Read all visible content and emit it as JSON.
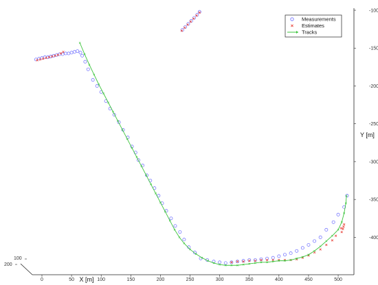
{
  "chart_data": {
    "type": "scatter",
    "xlabel": "X [m]",
    "ylabel": "Y [m]",
    "xlim": [
      -30,
      515
    ],
    "ylim": [
      -100,
      -435
    ],
    "z_ticks": [
      "100",
      "200"
    ],
    "x_ticks": [
      0,
      50,
      100,
      150,
      200,
      250,
      300,
      350,
      400,
      450,
      500
    ],
    "y_ticks": [
      -100,
      -150,
      -200,
      -250,
      -300,
      -350,
      -400
    ],
    "grid": false,
    "legend_position": "top-right",
    "legend": [
      {
        "label": "Measurements",
        "marker": "circle",
        "color": "#6a6aff"
      },
      {
        "label": "Estimates",
        "marker": "x",
        "color": "#e8433a"
      },
      {
        "label": "Tracks",
        "marker": "line-arrow",
        "color": "#3cc43c"
      }
    ],
    "series": [
      {
        "name": "Measurements",
        "kind": "scatter-circle",
        "color": "#6a6aff",
        "points": [
          [
            -10,
            -165
          ],
          [
            -5,
            -164
          ],
          [
            0,
            -163
          ],
          [
            5,
            -162
          ],
          [
            10,
            -162
          ],
          [
            15,
            -161
          ],
          [
            20,
            -160
          ],
          [
            25,
            -159
          ],
          [
            30,
            -158
          ],
          [
            35,
            -158
          ],
          [
            40,
            -157
          ],
          [
            45,
            -157
          ],
          [
            50,
            -156
          ],
          [
            55,
            -155
          ],
          [
            60,
            -154
          ],
          [
            65,
            -156
          ],
          [
            68,
            -160
          ],
          [
            73,
            -168
          ],
          [
            78,
            -178
          ],
          [
            86,
            -192
          ],
          [
            93,
            -200
          ],
          [
            100,
            -208
          ],
          [
            108,
            -220
          ],
          [
            115,
            -230
          ],
          [
            122,
            -238
          ],
          [
            130,
            -248
          ],
          [
            137,
            -258
          ],
          [
            145,
            -268
          ],
          [
            152,
            -280
          ],
          [
            158,
            -288
          ],
          [
            163,
            -298
          ],
          [
            170,
            -305
          ],
          [
            177,
            -318
          ],
          [
            183,
            -325
          ],
          [
            190,
            -335
          ],
          [
            197,
            -345
          ],
          [
            203,
            -355
          ],
          [
            210,
            -365
          ],
          [
            218,
            -375
          ],
          [
            225,
            -385
          ],
          [
            233,
            -393
          ],
          [
            240,
            -403
          ],
          [
            248,
            -413
          ],
          [
            258,
            -420
          ],
          [
            268,
            -428
          ],
          [
            279,
            -430
          ],
          [
            290,
            -432
          ],
          [
            300,
            -433
          ],
          [
            310,
            -434
          ],
          [
            320,
            -433
          ],
          [
            330,
            -432
          ],
          [
            340,
            -431
          ],
          [
            350,
            -430
          ],
          [
            360,
            -430
          ],
          [
            370,
            -429
          ],
          [
            380,
            -428
          ],
          [
            390,
            -427
          ],
          [
            400,
            -425
          ],
          [
            410,
            -423
          ],
          [
            420,
            -421
          ],
          [
            430,
            -418
          ],
          [
            440,
            -414
          ],
          [
            450,
            -410
          ],
          [
            460,
            -405
          ],
          [
            470,
            -400
          ],
          [
            480,
            -390
          ],
          [
            492,
            -380
          ],
          [
            500,
            -370
          ],
          [
            510,
            -360
          ],
          [
            515,
            -345
          ],
          [
            237,
            -126
          ],
          [
            242,
            -122
          ],
          [
            247,
            -118
          ],
          [
            252,
            -114
          ],
          [
            257,
            -110
          ],
          [
            262,
            -106
          ],
          [
            266,
            -102
          ]
        ]
      },
      {
        "name": "Estimates",
        "kind": "scatter-x",
        "color": "#e8433a",
        "points": [
          [
            -8,
            -166
          ],
          [
            -3,
            -165
          ],
          [
            2,
            -164
          ],
          [
            7,
            -163
          ],
          [
            12,
            -162
          ],
          [
            17,
            -161
          ],
          [
            22,
            -160
          ],
          [
            27,
            -159
          ],
          [
            32,
            -157
          ],
          [
            36,
            -155
          ],
          [
            236,
            -127
          ],
          [
            241,
            -123
          ],
          [
            246,
            -119
          ],
          [
            251,
            -115
          ],
          [
            256,
            -111
          ],
          [
            261,
            -107
          ],
          [
            266,
            -103
          ],
          [
            320,
            -433
          ],
          [
            330,
            -432
          ],
          [
            340,
            -432
          ],
          [
            350,
            -431
          ],
          [
            360,
            -431
          ],
          [
            370,
            -430
          ],
          [
            380,
            -430
          ],
          [
            390,
            -430
          ],
          [
            400,
            -430
          ],
          [
            410,
            -430
          ],
          [
            420,
            -430
          ],
          [
            430,
            -429
          ],
          [
            440,
            -427
          ],
          [
            450,
            -424
          ],
          [
            460,
            -420
          ],
          [
            470,
            -416
          ],
          [
            480,
            -410
          ],
          [
            490,
            -404
          ],
          [
            496,
            -398
          ],
          [
            506,
            -393
          ],
          [
            508,
            -389
          ],
          [
            509,
            -386
          ],
          [
            510,
            -383
          ],
          [
            505,
            -388
          ]
        ]
      },
      {
        "name": "Tracks",
        "kind": "line-x",
        "color": "#3cc43c",
        "points": [
          [
            64,
            -143
          ],
          [
            72,
            -158
          ],
          [
            80,
            -172
          ],
          [
            88,
            -185
          ],
          [
            96,
            -198
          ],
          [
            104,
            -210
          ],
          [
            112,
            -222
          ],
          [
            120,
            -234
          ],
          [
            128,
            -246
          ],
          [
            136,
            -258
          ],
          [
            144,
            -270
          ],
          [
            152,
            -282
          ],
          [
            160,
            -294
          ],
          [
            168,
            -306
          ],
          [
            176,
            -318
          ],
          [
            184,
            -330
          ],
          [
            192,
            -342
          ],
          [
            200,
            -354
          ],
          [
            208,
            -366
          ],
          [
            216,
            -378
          ],
          [
            224,
            -390
          ],
          [
            232,
            -400
          ],
          [
            240,
            -408
          ],
          [
            250,
            -416
          ],
          [
            260,
            -422
          ],
          [
            270,
            -427
          ],
          [
            280,
            -431
          ],
          [
            290,
            -434
          ],
          [
            300,
            -436
          ],
          [
            310,
            -437
          ],
          [
            320,
            -437
          ],
          [
            330,
            -437
          ],
          [
            340,
            -436
          ],
          [
            350,
            -435
          ],
          [
            360,
            -434
          ],
          [
            370,
            -433
          ],
          [
            380,
            -433
          ],
          [
            390,
            -432
          ],
          [
            400,
            -431
          ],
          [
            410,
            -431
          ],
          [
            420,
            -430
          ],
          [
            430,
            -428
          ],
          [
            440,
            -426
          ],
          [
            450,
            -423
          ],
          [
            460,
            -418
          ],
          [
            470,
            -412
          ],
          [
            480,
            -405
          ],
          [
            490,
            -398
          ],
          [
            500,
            -390
          ],
          [
            506,
            -380
          ],
          [
            510,
            -368
          ],
          [
            513,
            -355
          ],
          [
            514,
            -345
          ]
        ]
      }
    ]
  }
}
